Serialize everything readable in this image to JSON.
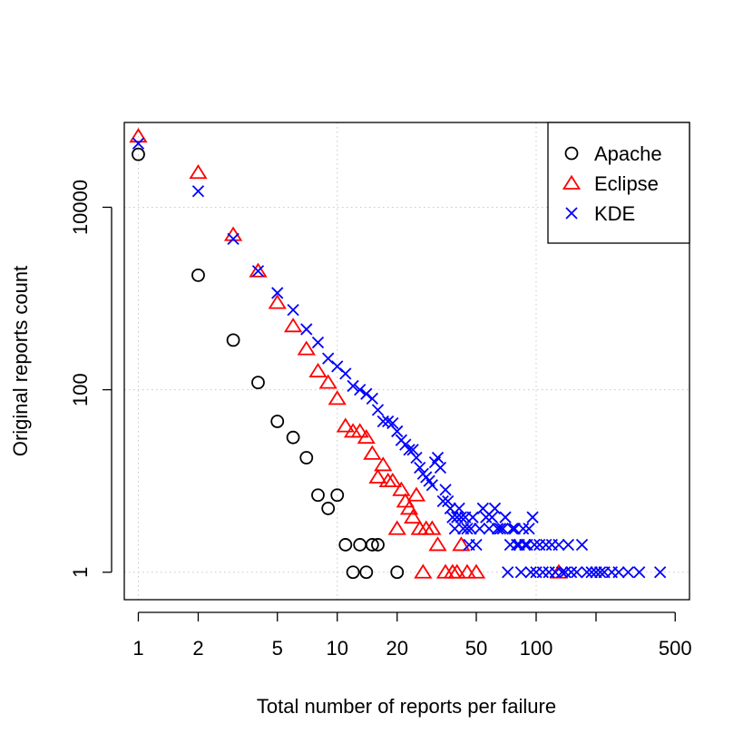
{
  "chart_data": {
    "type": "scatter",
    "title": "",
    "xlabel": "Total number of reports per failure",
    "ylabel": "Original reports count",
    "xscale": "log",
    "yscale": "log",
    "xlim": [
      0.85,
      590
    ],
    "ylim": [
      0.5,
      85000
    ],
    "xticks": [
      1,
      2,
      5,
      10,
      20,
      50,
      100,
      200,
      500
    ],
    "xtick_labels": [
      "1",
      "2",
      "5",
      "10",
      "20",
      "50",
      "100",
      "",
      "500"
    ],
    "yticks": [
      1,
      100,
      10000
    ],
    "ytick_labels": [
      "1",
      "100",
      "10000"
    ],
    "grid": "dotted",
    "legend_position": "top-right",
    "series": [
      {
        "name": "Apache",
        "marker": "circle",
        "color": "#000000",
        "points": [
          [
            1,
            38000
          ],
          [
            2,
            1800
          ],
          [
            3,
            350
          ],
          [
            4,
            120
          ],
          [
            5,
            45
          ],
          [
            6,
            30
          ],
          [
            7,
            18
          ],
          [
            8,
            7
          ],
          [
            9,
            5
          ],
          [
            10,
            7
          ],
          [
            11,
            2
          ],
          [
            12,
            1
          ],
          [
            13,
            2
          ],
          [
            14,
            1
          ],
          [
            15,
            2
          ],
          [
            16,
            2
          ],
          [
            20,
            1
          ]
        ]
      },
      {
        "name": "Eclipse",
        "marker": "triangle",
        "color": "#ff0000",
        "points": [
          [
            1,
            60000
          ],
          [
            2,
            24000
          ],
          [
            3,
            5000
          ],
          [
            4,
            2000
          ],
          [
            5,
            900
          ],
          [
            6,
            500
          ],
          [
            7,
            280
          ],
          [
            8,
            160
          ],
          [
            9,
            120
          ],
          [
            10,
            80
          ],
          [
            11,
            40
          ],
          [
            12,
            35
          ],
          [
            13,
            35
          ],
          [
            14,
            30
          ],
          [
            15,
            20
          ],
          [
            16,
            11
          ],
          [
            17,
            15
          ],
          [
            18,
            10
          ],
          [
            19,
            10
          ],
          [
            20,
            3
          ],
          [
            21,
            8
          ],
          [
            22,
            6
          ],
          [
            23,
            5
          ],
          [
            24,
            4
          ],
          [
            25,
            7
          ],
          [
            26,
            3
          ],
          [
            27,
            1
          ],
          [
            28,
            3
          ],
          [
            30,
            3
          ],
          [
            32,
            2
          ],
          [
            35,
            1
          ],
          [
            38,
            1
          ],
          [
            40,
            1
          ],
          [
            42,
            2
          ],
          [
            45,
            1
          ],
          [
            50,
            1
          ],
          [
            130,
            1
          ]
        ]
      },
      {
        "name": "KDE",
        "marker": "cross",
        "color": "#0000ff",
        "points": [
          [
            1,
            50000
          ],
          [
            2,
            15000
          ],
          [
            3,
            4500
          ],
          [
            4,
            2000
          ],
          [
            5,
            1150
          ],
          [
            6,
            750
          ],
          [
            7,
            460
          ],
          [
            8,
            330
          ],
          [
            9,
            220
          ],
          [
            10,
            180
          ],
          [
            11,
            150
          ],
          [
            12,
            110
          ],
          [
            13,
            100
          ],
          [
            14,
            90
          ],
          [
            15,
            80
          ],
          [
            16,
            60
          ],
          [
            17,
            45
          ],
          [
            18,
            45
          ],
          [
            19,
            43
          ],
          [
            20,
            35
          ],
          [
            21,
            28
          ],
          [
            22,
            25
          ],
          [
            23,
            22
          ],
          [
            24,
            22
          ],
          [
            25,
            18
          ],
          [
            26,
            14
          ],
          [
            27,
            12
          ],
          [
            28,
            11
          ],
          [
            29,
            10
          ],
          [
            30,
            9
          ],
          [
            31,
            16
          ],
          [
            32,
            18
          ],
          [
            33,
            14
          ],
          [
            34,
            6
          ],
          [
            35,
            8
          ],
          [
            36,
            6
          ],
          [
            37,
            5
          ],
          [
            38,
            4
          ],
          [
            39,
            3
          ],
          [
            40,
            4
          ],
          [
            41,
            5
          ],
          [
            42,
            4
          ],
          [
            43,
            3
          ],
          [
            44,
            4
          ],
          [
            45,
            3
          ],
          [
            46,
            2
          ],
          [
            47,
            3
          ],
          [
            48,
            4
          ],
          [
            50,
            2
          ],
          [
            52,
            3
          ],
          [
            54,
            5
          ],
          [
            56,
            4
          ],
          [
            58,
            3
          ],
          [
            60,
            4
          ],
          [
            62,
            5
          ],
          [
            64,
            3
          ],
          [
            66,
            3
          ],
          [
            68,
            3
          ],
          [
            70,
            4
          ],
          [
            72,
            1
          ],
          [
            74,
            2
          ],
          [
            76,
            3
          ],
          [
            78,
            3
          ],
          [
            80,
            2
          ],
          [
            82,
            2
          ],
          [
            84,
            1
          ],
          [
            86,
            3
          ],
          [
            88,
            2
          ],
          [
            90,
            2
          ],
          [
            92,
            3
          ],
          [
            94,
            1
          ],
          [
            96,
            4
          ],
          [
            98,
            2
          ],
          [
            100,
            1
          ],
          [
            104,
            2
          ],
          [
            108,
            1
          ],
          [
            112,
            2
          ],
          [
            116,
            1
          ],
          [
            120,
            2
          ],
          [
            125,
            1
          ],
          [
            130,
            2
          ],
          [
            135,
            1
          ],
          [
            140,
            1
          ],
          [
            145,
            2
          ],
          [
            150,
            1
          ],
          [
            160,
            1
          ],
          [
            170,
            2
          ],
          [
            180,
            1
          ],
          [
            190,
            1
          ],
          [
            200,
            1
          ],
          [
            210,
            1
          ],
          [
            220,
            1
          ],
          [
            240,
            1
          ],
          [
            260,
            1
          ],
          [
            290,
            1
          ],
          [
            330,
            1
          ],
          [
            420,
            1
          ]
        ]
      }
    ]
  }
}
